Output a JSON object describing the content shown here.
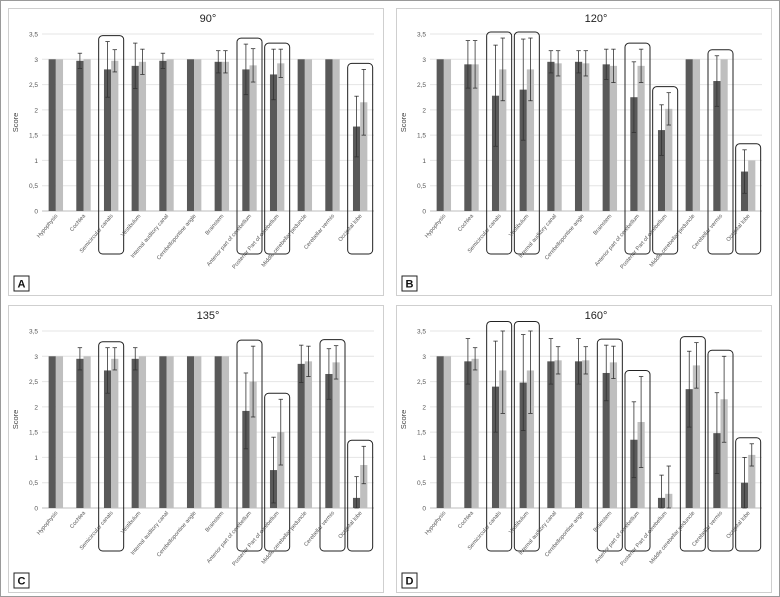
{
  "chart_data": [
    {
      "type": "bar",
      "panel_letter": "A",
      "title": "90°",
      "ylabel": "Score",
      "ylim": [
        0,
        3.5
      ],
      "yticks": [
        "0",
        "0,5",
        "1",
        "1,5",
        "2",
        "2,5",
        "3",
        "3,5"
      ],
      "categories": [
        "Hypophysis",
        "Cochlea",
        "Semicircular canals",
        "Vestibulum",
        "Internal auditory canal",
        "Cerebellopontine angle",
        "Brainstem",
        "Anterior part of cerebellum",
        "Posterior Part of cerebellum",
        "Middle cerebellar peduncle",
        "Cerebellar vermis",
        "Occipital lobe"
      ],
      "series": [
        {
          "values": [
            3.0,
            2.97,
            2.8,
            2.87,
            2.97,
            3.0,
            2.95,
            2.8,
            2.7,
            3.0,
            3.0,
            1.67
          ],
          "errors": [
            0,
            0.15,
            0.55,
            0.45,
            0.15,
            0,
            0.22,
            0.5,
            0.5,
            0,
            0,
            0.6
          ],
          "color": "#595959"
        },
        {
          "values": [
            3.0,
            3.0,
            2.97,
            2.95,
            3.0,
            3.0,
            2.95,
            2.88,
            2.92,
            3.0,
            3.0,
            2.15
          ],
          "errors": [
            0,
            0,
            0.22,
            0.25,
            0,
            0,
            0.22,
            0.33,
            0.28,
            0,
            0,
            0.65
          ],
          "color": "#bfbfbf"
        }
      ],
      "highlighted": [
        "Semicircular canals",
        "Anterior part of cerebellum",
        "Posterior Part of cerebellum",
        "Occipital lobe"
      ]
    },
    {
      "type": "bar",
      "panel_letter": "B",
      "title": "120°",
      "ylabel": "Score",
      "ylim": [
        0,
        3.5
      ],
      "yticks": [
        "0",
        "0,5",
        "1",
        "1,5",
        "2",
        "2,5",
        "3",
        "3,5"
      ],
      "categories": [
        "Hypophysis",
        "Cochlea",
        "Semicircular canals",
        "Vestibulum",
        "Internal auditory canal",
        "Cerebellopontine angle",
        "Brainstem",
        "Anterior part of cerebellum",
        "Posterior Part of cerebellum",
        "Middle cerebellar peduncle",
        "Cerebellar vermis",
        "Occipital lobe"
      ],
      "series": [
        {
          "values": [
            3.0,
            2.9,
            2.28,
            2.4,
            2.95,
            2.95,
            2.9,
            2.25,
            1.6,
            3.0,
            2.57,
            0.78
          ],
          "errors": [
            0,
            0.47,
            1.0,
            1.0,
            0.22,
            0.22,
            0.3,
            0.7,
            0.5,
            0,
            0.5,
            0.43
          ],
          "color": "#595959"
        },
        {
          "values": [
            3.0,
            2.9,
            2.8,
            2.8,
            2.92,
            2.92,
            2.87,
            2.87,
            2.02,
            3.0,
            3.0,
            1.0
          ],
          "errors": [
            0,
            0.47,
            0.62,
            0.62,
            0.25,
            0.25,
            0.33,
            0.33,
            0.32,
            0,
            0,
            0
          ],
          "color": "#bfbfbf"
        }
      ],
      "highlighted": [
        "Semicircular canals",
        "Vestibulum",
        "Anterior part of cerebellum",
        "Posterior Part of cerebellum",
        "Cerebellar vermis",
        "Occipital lobe"
      ]
    },
    {
      "type": "bar",
      "panel_letter": "C",
      "title": "135°",
      "ylabel": "Score",
      "ylim": [
        0,
        3.5
      ],
      "yticks": [
        "0",
        "0,5",
        "1",
        "1,5",
        "2",
        "2,5",
        "3",
        "3,5"
      ],
      "categories": [
        "Hypophysis",
        "Cochlea",
        "Semicircular canals",
        "Vestibulum",
        "Internal auditory canal",
        "Cerebellopontine angle",
        "Brainstem",
        "Anterior part of cerebellum",
        "Posterior Part of cerebellum",
        "Middle cerebellar peduncle",
        "Cerebellar vermis",
        "Occipital lobe"
      ],
      "series": [
        {
          "values": [
            3.0,
            2.95,
            2.72,
            2.95,
            3.0,
            3.0,
            3.0,
            1.92,
            0.75,
            2.85,
            2.65,
            0.2
          ],
          "errors": [
            0,
            0.22,
            0.45,
            0.22,
            0,
            0,
            0,
            0.75,
            0.65,
            0.37,
            0.5,
            0.42
          ],
          "color": "#595959"
        },
        {
          "values": [
            3.0,
            3.0,
            2.95,
            3.0,
            3.0,
            3.0,
            3.0,
            2.5,
            1.5,
            2.9,
            2.88,
            0.85
          ],
          "errors": [
            0,
            0,
            0.22,
            0,
            0,
            0,
            0,
            0.7,
            0.65,
            0.3,
            0.33,
            0.37
          ],
          "color": "#bfbfbf"
        }
      ],
      "highlighted": [
        "Semicircular canals",
        "Anterior part of cerebellum",
        "Posterior Part of cerebellum",
        "Cerebellar vermis",
        "Occipital lobe"
      ]
    },
    {
      "type": "bar",
      "panel_letter": "D",
      "title": "160°",
      "ylabel": "Score",
      "ylim": [
        0,
        3.5
      ],
      "yticks": [
        "0",
        "0,5",
        "1",
        "1,5",
        "2",
        "2,5",
        "3",
        "3,5"
      ],
      "categories": [
        "Hypophysis",
        "Cochlea",
        "Semicircular canals",
        "Vestibulum",
        "Internal auditory canal",
        "Cerebellopontine angle",
        "Brainstem",
        "Anterior part of cerebellum",
        "Posterior Part of cerebellum",
        "Middle cerebellar peduncle",
        "Cerebellar vermis",
        "Occipital lobe"
      ],
      "series": [
        {
          "values": [
            3.0,
            2.9,
            2.4,
            2.48,
            2.9,
            2.9,
            2.67,
            1.35,
            0.2,
            2.35,
            1.48,
            0.5
          ],
          "errors": [
            0,
            0.45,
            0.9,
            0.95,
            0.45,
            0.45,
            0.55,
            0.75,
            0.45,
            0.75,
            0.8,
            0.5
          ],
          "color": "#595959"
        },
        {
          "values": [
            3.0,
            2.95,
            2.72,
            2.72,
            2.92,
            2.92,
            2.88,
            1.7,
            0.28,
            2.82,
            2.15,
            1.05
          ],
          "errors": [
            0,
            0.22,
            0.85,
            0.85,
            0.27,
            0.27,
            0.32,
            0.9,
            0.55,
            0.45,
            0.85,
            0.22
          ],
          "color": "#bfbfbf"
        }
      ],
      "highlighted": [
        "Semicircular canals",
        "Vestibulum",
        "Brainstem",
        "Anterior part of cerebellum",
        "Middle cerebellar peduncle",
        "Cerebellar vermis",
        "Occipital lobe"
      ]
    }
  ]
}
